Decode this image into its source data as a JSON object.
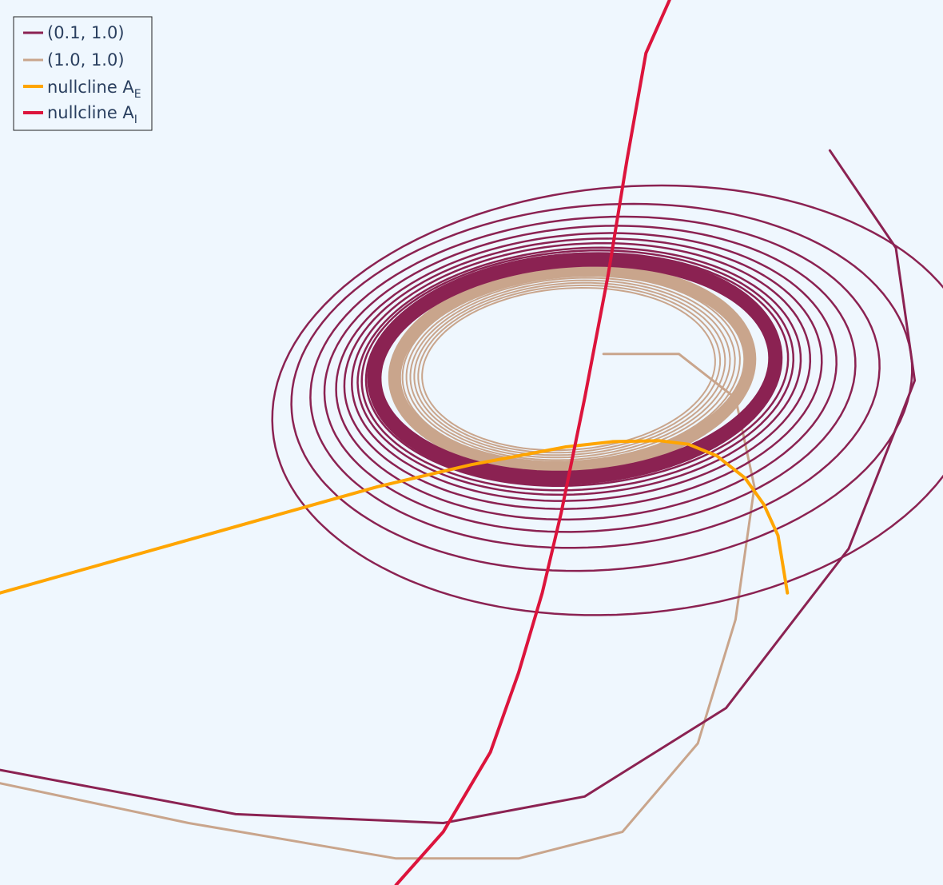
{
  "chart_data": {
    "type": "line",
    "title": "",
    "xlabel": "",
    "ylabel": "",
    "grid": false,
    "legend_position": "top-left",
    "legend": [
      {
        "label": "(0.1, 1.0)",
        "color": "#8b2252"
      },
      {
        "label": "(1.0, 1.0)",
        "color": "#c9a58c"
      },
      {
        "label": "nullcline A",
        "sub": "E",
        "color": "#ffa500"
      },
      {
        "label": "nullcline A",
        "sub": "I",
        "color": "#dc143c"
      }
    ],
    "series": [
      {
        "name": "(0.1, 1.0)",
        "color": "#8b2252",
        "kind": "trajectory",
        "start": [
          0.0,
          0.13
        ],
        "rings": [
          {
            "cx": 0.62,
            "cy": 0.545,
            "rx": 0.37,
            "ry": 0.24
          },
          {
            "cx": 0.6,
            "cy": 0.56,
            "rx": 0.325,
            "ry": 0.205
          },
          {
            "cx": 0.596,
            "cy": 0.566,
            "rx": 0.298,
            "ry": 0.185
          },
          {
            "cx": 0.593,
            "cy": 0.57,
            "rx": 0.278,
            "ry": 0.171
          },
          {
            "cx": 0.591,
            "cy": 0.573,
            "rx": 0.262,
            "ry": 0.16
          },
          {
            "cx": 0.589,
            "cy": 0.576,
            "rx": 0.25,
            "ry": 0.151
          },
          {
            "cx": 0.588,
            "cy": 0.578,
            "rx": 0.24,
            "ry": 0.144
          },
          {
            "cx": 0.587,
            "cy": 0.579,
            "rx": 0.232,
            "ry": 0.138
          },
          {
            "cx": 0.586,
            "cy": 0.58,
            "rx": 0.226,
            "ry": 0.134
          },
          {
            "cx": 0.586,
            "cy": 0.581,
            "rx": 0.221,
            "ry": 0.13
          }
        ],
        "limit_cycle": {
          "cx": 0.585,
          "cy": 0.582,
          "rx": 0.21,
          "ry": 0.122
        }
      },
      {
        "name": "(1.0, 1.0)",
        "color": "#c9a58c",
        "kind": "trajectory",
        "start": [
          0.0,
          0.115
        ],
        "limit_cycle": {
          "cx": 0.585,
          "cy": 0.582,
          "rx": 0.186,
          "ry": 0.11
        }
      },
      {
        "name": "nullcline A_E",
        "color": "#ffa500",
        "x": [
          0.0,
          0.1,
          0.2,
          0.3,
          0.4,
          0.5,
          0.6,
          0.65,
          0.7,
          0.73,
          0.76,
          0.79,
          0.81,
          0.825,
          0.835
        ],
        "y": [
          0.33,
          0.36,
          0.39,
          0.42,
          0.45,
          0.475,
          0.495,
          0.501,
          0.502,
          0.498,
          0.485,
          0.46,
          0.43,
          0.395,
          0.33
        ]
      },
      {
        "name": "nullcline A_I",
        "color": "#dc143c",
        "x": [
          0.42,
          0.47,
          0.52,
          0.55,
          0.575,
          0.595,
          0.62,
          0.645,
          0.665,
          0.685,
          0.71
        ],
        "y": [
          0.0,
          0.06,
          0.15,
          0.24,
          0.33,
          0.42,
          0.55,
          0.69,
          0.82,
          0.94,
          1.0
        ]
      }
    ]
  }
}
